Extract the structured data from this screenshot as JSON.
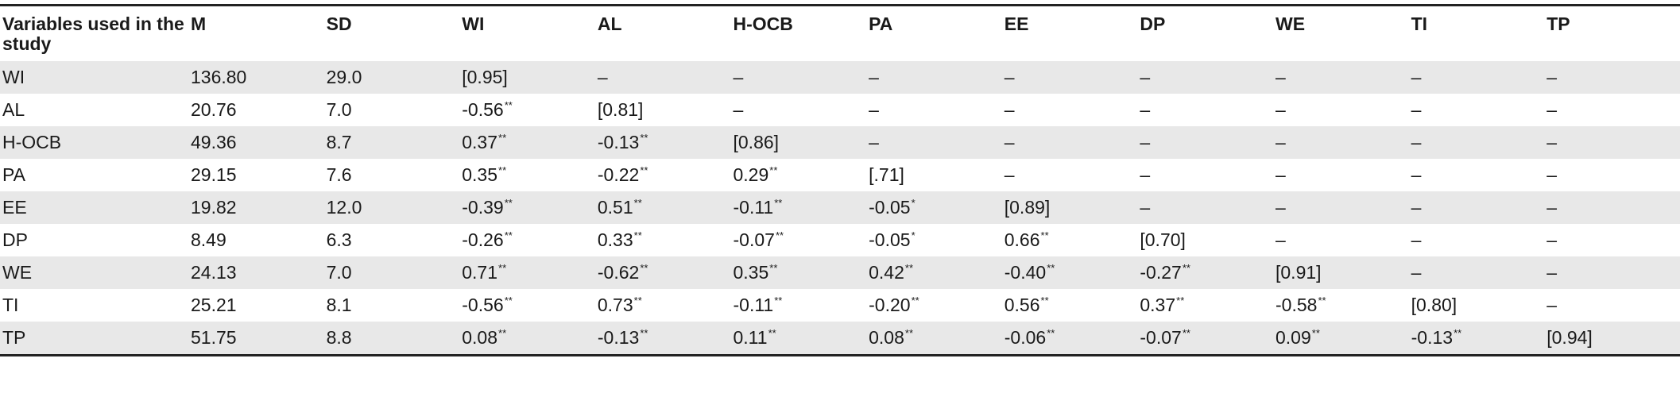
{
  "table": {
    "header": [
      "Variables used in the study",
      "M",
      "SD",
      "WI",
      "AL",
      "H-OCB",
      "PA",
      "EE",
      "DP",
      "WE",
      "TI",
      "TP"
    ],
    "rows": [
      {
        "label": "WI",
        "m": "136.80",
        "sd": "29.0",
        "cells": [
          "[0.95]",
          "–",
          "–",
          "–",
          "–",
          "–",
          "–",
          "–",
          "–"
        ]
      },
      {
        "label": "AL",
        "m": "20.76",
        "sd": "7.0",
        "cells": [
          [
            "-0.56",
            "**"
          ],
          "[0.81]",
          "–",
          "–",
          "–",
          "–",
          "–",
          "–",
          "–"
        ]
      },
      {
        "label": "H-OCB",
        "m": "49.36",
        "sd": "8.7",
        "cells": [
          [
            "0.37",
            "**"
          ],
          [
            "-0.13",
            "**"
          ],
          "[0.86]",
          "–",
          "–",
          "–",
          "–",
          "–",
          "–"
        ]
      },
      {
        "label": "PA",
        "m": "29.15",
        "sd": "7.6",
        "cells": [
          [
            "0.35",
            "**"
          ],
          [
            "-0.22",
            "**"
          ],
          [
            "0.29",
            "**"
          ],
          "[.71]",
          "–",
          "–",
          "–",
          "–",
          "–"
        ]
      },
      {
        "label": "EE",
        "m": "19.82",
        "sd": "12.0",
        "cells": [
          [
            "-0.39",
            "**"
          ],
          [
            "0.51",
            "**"
          ],
          [
            "-0.11",
            "**"
          ],
          [
            "-0.05",
            "*"
          ],
          "[0.89]",
          "–",
          "–",
          "–",
          "–"
        ]
      },
      {
        "label": "DP",
        "m": "8.49",
        "sd": "6.3",
        "cells": [
          [
            "-0.26",
            "**"
          ],
          [
            "0.33",
            "**"
          ],
          [
            "-0.07",
            "**"
          ],
          [
            "-0.05",
            "*"
          ],
          [
            "0.66",
            "**"
          ],
          "[0.70]",
          "–",
          "–",
          "–"
        ]
      },
      {
        "label": "WE",
        "m": "24.13",
        "sd": "7.0",
        "cells": [
          [
            "0.71",
            "**"
          ],
          [
            "-0.62",
            "**"
          ],
          [
            "0.35",
            "**"
          ],
          [
            "0.42",
            "**"
          ],
          [
            "-0.40",
            "**"
          ],
          [
            "-0.27",
            "**"
          ],
          "[0.91]",
          "–",
          "–"
        ]
      },
      {
        "label": "TI",
        "m": "25.21",
        "sd": "8.1",
        "cells": [
          [
            "-0.56",
            "**"
          ],
          [
            "0.73",
            "**"
          ],
          [
            "-0.11",
            "**"
          ],
          [
            "-0.20",
            "**"
          ],
          [
            "0.56",
            "**"
          ],
          [
            "0.37",
            "**"
          ],
          [
            "-0.58",
            "**"
          ],
          "[0.80]",
          "–"
        ]
      },
      {
        "label": "TP",
        "m": "51.75",
        "sd": "8.8",
        "cells": [
          [
            "0.08",
            "**"
          ],
          [
            "-0.13",
            "**"
          ],
          [
            "0.11",
            "**"
          ],
          [
            "0.08",
            "**"
          ],
          [
            "-0.06",
            "**"
          ],
          [
            "-0.07",
            "**"
          ],
          [
            "0.09",
            "**"
          ],
          [
            "-0.13",
            "**"
          ],
          "[0.94]"
        ]
      }
    ]
  }
}
